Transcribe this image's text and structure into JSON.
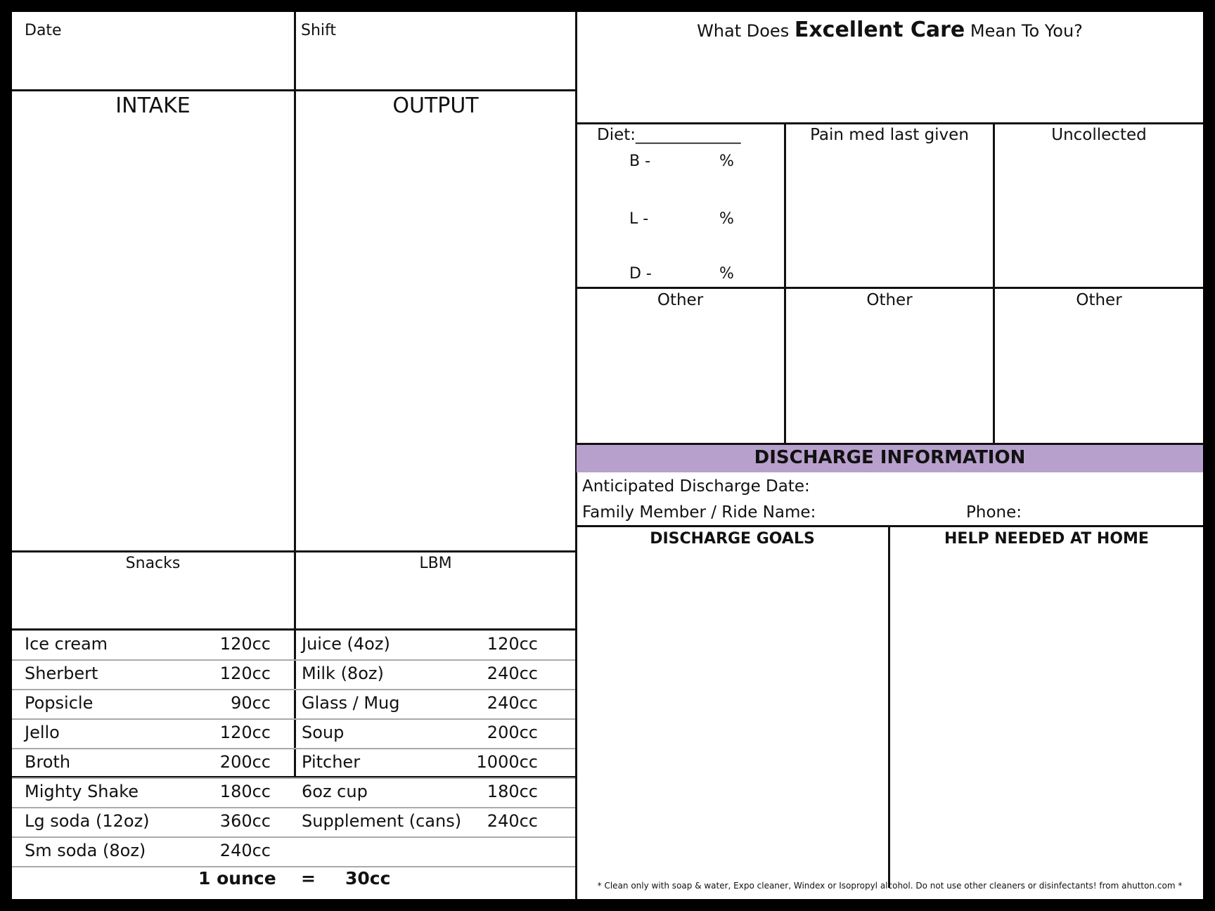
{
  "header": {
    "date_label": "Date",
    "shift_label": "Shift",
    "care_prefix": "What Does ",
    "care_emphasis": "Excellent Care",
    "care_suffix": " Mean To You?"
  },
  "sections": {
    "intake_label": "INTAKE",
    "output_label": "OUTPUT",
    "snacks_label": "Snacks",
    "lbm_label": "LBM"
  },
  "diet": {
    "label": "Diet:_____________",
    "meals": [
      {
        "letter": "B -",
        "unit": "%"
      },
      {
        "letter": "L -",
        "unit": "%"
      },
      {
        "letter": "D -",
        "unit": "%"
      }
    ]
  },
  "boxes": {
    "pain_med": "Pain med last given",
    "uncollected": "Uncollected",
    "other_1": "Other",
    "other_2": "Other",
    "other_3": "Other"
  },
  "discharge": {
    "title": "DISCHARGE INFORMATION",
    "date_label": "Anticipated Discharge Date:",
    "family_label": "Family Member / Ride Name:",
    "phone_label": "Phone:",
    "goals_label": "DISCHARGE GOALS",
    "help_label": "HELP NEEDED AT HOME",
    "accent_color": "#b8a0cc"
  },
  "reference_left": [
    {
      "item": "Ice cream",
      "amount": "120cc"
    },
    {
      "item": "Sherbert",
      "amount": "120cc"
    },
    {
      "item": "Popsicle",
      "amount": "90cc"
    },
    {
      "item": "Jello",
      "amount": "120cc"
    },
    {
      "item": "Broth",
      "amount": "200cc"
    },
    {
      "item": "Mighty Shake",
      "amount": "180cc"
    },
    {
      "item": "Lg soda (12oz)",
      "amount": "360cc"
    },
    {
      "item": "Sm soda (8oz)",
      "amount": "240cc"
    }
  ],
  "reference_right": [
    {
      "item": "Juice (4oz)",
      "amount": "120cc"
    },
    {
      "item": "Milk (8oz)",
      "amount": "240cc"
    },
    {
      "item": "Glass / Mug",
      "amount": "240cc"
    },
    {
      "item": "Soup",
      "amount": "200cc"
    },
    {
      "item": "Pitcher",
      "amount": "1000cc"
    },
    {
      "item": "6oz cup",
      "amount": "180cc"
    },
    {
      "item": "Supplement (cans)",
      "amount": "240cc"
    }
  ],
  "conversion": {
    "left": "1 ounce",
    "equals": "=",
    "right": "30cc"
  },
  "footer_note": "* Clean only with soap & water, Expo cleaner, Windex or Isopropyl alcohol.  Do not use other cleaners or disinfectants!   from ahutton.com *"
}
